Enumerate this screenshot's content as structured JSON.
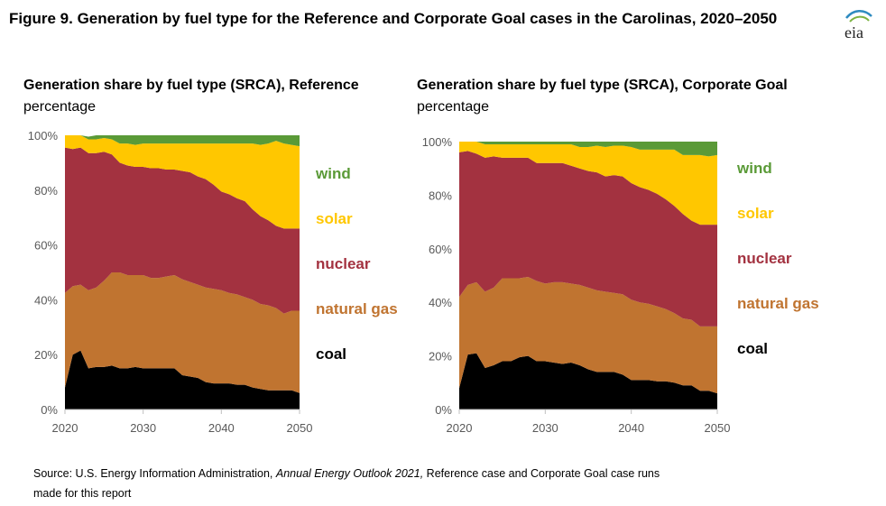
{
  "figure": {
    "title": "Figure 9. Generation by fuel type for the Reference and Corporate Goal cases in the Carolinas, 2020–2050",
    "logo_text": "eia",
    "source_prefix": "Source: U.S. Energy Information Administration, ",
    "source_italic": "Annual Energy Outlook 2021,",
    "source_suffix": " Reference case and Corporate Goal case runs made for this report"
  },
  "colors": {
    "coal": "#000000",
    "natural_gas": "#C07430",
    "nuclear": "#A33240",
    "solar": "#FFC700",
    "wind": "#5A9A37",
    "tick_text": "#595959",
    "axis": "#BFBFBF"
  },
  "chart_data": [
    {
      "type": "area",
      "stacked": true,
      "title": "Generation share by fuel type (SRCA), Reference",
      "subtitle": "percentage",
      "x": [
        2020,
        2021,
        2022,
        2023,
        2024,
        2025,
        2026,
        2027,
        2028,
        2029,
        2030,
        2031,
        2032,
        2033,
        2034,
        2035,
        2036,
        2037,
        2038,
        2039,
        2040,
        2041,
        2042,
        2043,
        2044,
        2045,
        2046,
        2047,
        2048,
        2049,
        2050
      ],
      "xticks": [
        "2020",
        "2030",
        "2040",
        "2050"
      ],
      "yticks": [
        "0%",
        "20%",
        "40%",
        "60%",
        "80%",
        "100%"
      ],
      "ylim": [
        0,
        100
      ],
      "legend": [
        "wind",
        "solar",
        "nuclear",
        "natural gas",
        "coal"
      ],
      "series": [
        {
          "name": "coal",
          "values": [
            8,
            20,
            21.5,
            15,
            15.5,
            15.5,
            16,
            15,
            15,
            15.5,
            15,
            15,
            15,
            15,
            15,
            12.5,
            12,
            11.5,
            10,
            9.5,
            9.5,
            9.5,
            9,
            9,
            8,
            7.5,
            7,
            7,
            7,
            7,
            6
          ]
        },
        {
          "name": "natural gas",
          "values": [
            34.5,
            25,
            24,
            28.5,
            29,
            31.5,
            34,
            35,
            34,
            33.5,
            34,
            33,
            33,
            33.5,
            34,
            35,
            34.5,
            34,
            34.5,
            34.5,
            34,
            33,
            33,
            32,
            32,
            31,
            31,
            30,
            28,
            29,
            30
          ]
        },
        {
          "name": "nuclear",
          "values": [
            53,
            50,
            50,
            50,
            49,
            47,
            43,
            40,
            40,
            39.5,
            39.5,
            40,
            40,
            39,
            38.5,
            39.5,
            40,
            39.5,
            39.5,
            38,
            36,
            36,
            35,
            35,
            33,
            32,
            31,
            30,
            31,
            30,
            30
          ]
        },
        {
          "name": "solar",
          "values": [
            4.5,
            5,
            4.5,
            5,
            5,
            5,
            5.5,
            7,
            8,
            8,
            8.5,
            9,
            9,
            9.5,
            9.5,
            10,
            10.5,
            12,
            13,
            15,
            17.5,
            18.5,
            20,
            21,
            24,
            26,
            28,
            31,
            31,
            30.5,
            30
          ]
        },
        {
          "name": "wind",
          "values": [
            0,
            0,
            0,
            1,
            1.5,
            1,
            1.5,
            3,
            3,
            3.5,
            3,
            3,
            3,
            3,
            3,
            3,
            3,
            3,
            3,
            3,
            3,
            3,
            3,
            3,
            3,
            3.5,
            3,
            2,
            3,
            3.5,
            4
          ]
        }
      ]
    },
    {
      "type": "area",
      "stacked": true,
      "title": "Generation share by fuel type (SRCA), Corporate Goal",
      "subtitle": "percentage",
      "x": [
        2020,
        2021,
        2022,
        2023,
        2024,
        2025,
        2026,
        2027,
        2028,
        2029,
        2030,
        2031,
        2032,
        2033,
        2034,
        2035,
        2036,
        2037,
        2038,
        2039,
        2040,
        2041,
        2042,
        2043,
        2044,
        2045,
        2046,
        2047,
        2048,
        2049,
        2050
      ],
      "xticks": [
        "2020",
        "2030",
        "2040",
        "2050"
      ],
      "yticks": [
        "0%",
        "20%",
        "40%",
        "60%",
        "80%",
        "100%"
      ],
      "ylim": [
        0,
        100
      ],
      "legend": [
        "wind",
        "solar",
        "nuclear",
        "natural gas",
        "coal"
      ],
      "series": [
        {
          "name": "coal",
          "values": [
            8,
            20.5,
            21,
            15.5,
            16.5,
            18,
            18,
            19.5,
            20,
            18,
            18,
            17.5,
            17,
            17.5,
            16.5,
            15,
            14,
            14,
            14,
            13,
            11,
            11,
            11,
            10.5,
            10.5,
            10,
            9,
            9,
            7,
            7,
            6
          ]
        },
        {
          "name": "natural gas",
          "values": [
            34,
            26,
            26.5,
            28.5,
            29,
            31,
            31,
            29.5,
            29.5,
            30,
            29,
            30,
            30.5,
            29.5,
            30,
            30.5,
            30.5,
            30,
            29.5,
            30,
            30,
            29,
            28.5,
            28,
            27,
            26,
            25,
            24.5,
            24,
            24,
            25
          ]
        },
        {
          "name": "nuclear",
          "values": [
            54,
            50,
            48,
            50,
            49,
            45,
            45,
            45,
            44.5,
            44,
            45,
            44.5,
            44.5,
            44,
            43.5,
            43.5,
            44,
            43,
            44,
            44,
            43.5,
            43,
            42.5,
            42,
            41,
            40,
            39,
            37,
            38,
            38,
            38
          ]
        },
        {
          "name": "solar",
          "values": [
            4,
            3.5,
            4.5,
            5,
            4.5,
            5,
            5,
            5,
            5,
            7,
            7,
            7,
            7,
            8,
            8,
            9,
            10,
            11,
            11,
            11.5,
            13.5,
            14,
            15,
            16.5,
            18.5,
            21,
            22,
            24.5,
            26,
            25.5,
            26
          ]
        },
        {
          "name": "wind",
          "values": [
            0,
            0,
            0,
            1,
            1,
            1,
            1,
            1,
            1,
            1,
            1,
            1,
            1,
            1,
            2,
            2,
            1.5,
            2,
            1.5,
            1.5,
            2,
            3,
            3,
            3,
            3,
            3,
            5,
            5,
            5,
            5.5,
            5
          ]
        }
      ]
    }
  ]
}
